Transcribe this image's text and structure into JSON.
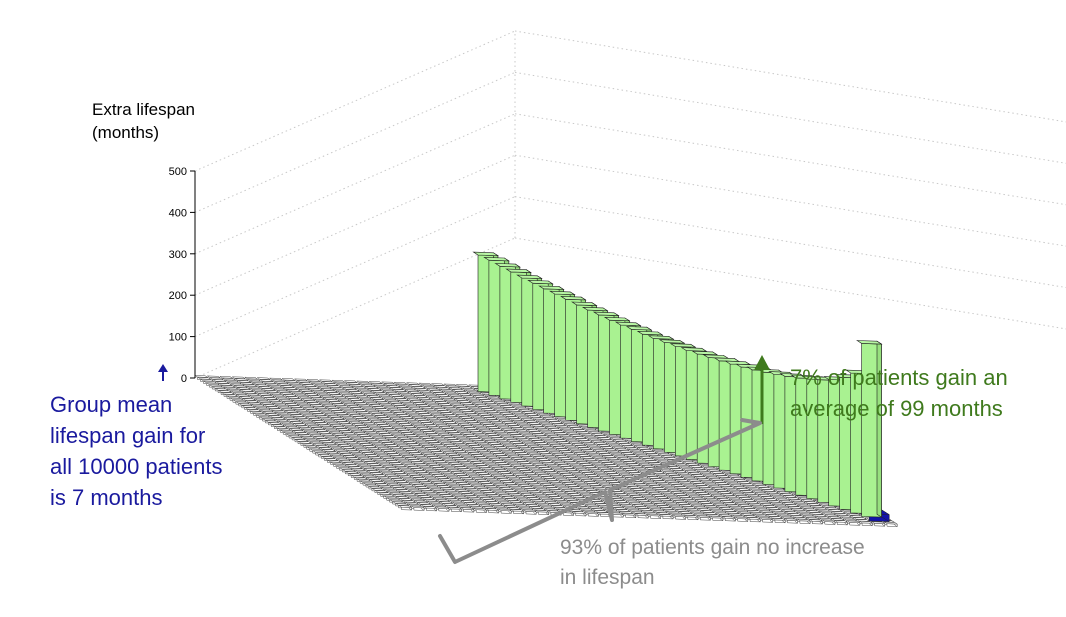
{
  "chart_data": {
    "type": "bar",
    "ylabel": "Extra lifespan\n(months)",
    "ylim": [
      0,
      500
    ],
    "yticks": [
      0,
      100,
      200,
      300,
      400,
      500
    ],
    "grid": true,
    "base_grid": {
      "rows": 70,
      "cols": 40,
      "value": 0,
      "color": "#ffffff"
    },
    "series": [
      {
        "values": [
          330,
          326,
          320,
          315,
          309,
          305,
          300,
          296,
          292,
          287,
          283,
          280,
          276,
          273,
          271,
          268,
          266,
          265,
          264,
          263,
          263,
          263,
          264,
          265,
          266,
          268,
          271,
          274,
          278,
          283,
          289,
          296,
          305,
          319,
          338,
          418
        ],
        "color": "#a9f291"
      }
    ],
    "highlight_cells": [
      {
        "label": "blue-start",
        "color": "#1414a8"
      },
      {
        "label": "blue-end",
        "color": "#1414a8"
      },
      {
        "label": "yellow-strip",
        "color": "#f2e07a"
      }
    ]
  },
  "annotations": {
    "left_note": "Group mean\nlifespan gain for\nall 10000 patients\nis 7 months",
    "right_note": "7% of patients gain an\naverage of 99 months",
    "bottom_note": "93% of patients gain no increase\nin lifespan",
    "colors": {
      "blue": "#1a1a9e",
      "green": "#3f7a1d",
      "gray": "#8c8c8c"
    }
  }
}
